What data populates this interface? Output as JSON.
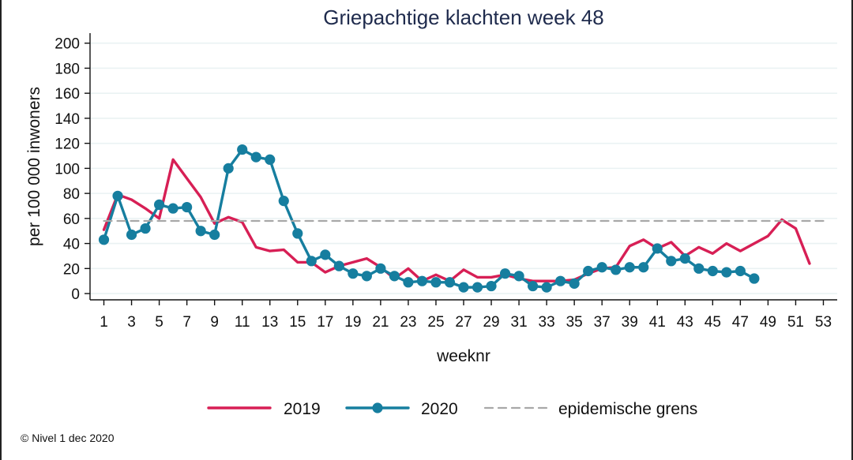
{
  "chart_data": {
    "type": "line",
    "title": "Griepachtige klachten week 48",
    "xlabel": "weeknr",
    "ylabel": "per 100 000 inwoners",
    "xlim": [
      0,
      54
    ],
    "ylim": [
      -5,
      208
    ],
    "x_ticks": [
      1,
      3,
      5,
      7,
      9,
      11,
      13,
      15,
      17,
      19,
      21,
      23,
      25,
      27,
      29,
      31,
      33,
      35,
      37,
      39,
      41,
      43,
      45,
      47,
      49,
      51,
      53
    ],
    "y_ticks": [
      0,
      20,
      40,
      60,
      80,
      100,
      120,
      140,
      160,
      180,
      200
    ],
    "grid": true,
    "legend_position": "bottom",
    "series": [
      {
        "name": "2019",
        "color": "#d71f55",
        "marker": "none",
        "points": [
          [
            1,
            51
          ],
          [
            2,
            79
          ],
          [
            3,
            75
          ],
          [
            4,
            68
          ],
          [
            5,
            60
          ],
          [
            6,
            107
          ],
          [
            7,
            92
          ],
          [
            8,
            77
          ],
          [
            9,
            56
          ],
          [
            10,
            61
          ],
          [
            11,
            57
          ],
          [
            12,
            37
          ],
          [
            13,
            34
          ],
          [
            14,
            35
          ],
          [
            15,
            25
          ],
          [
            16,
            25
          ],
          [
            17,
            17
          ],
          [
            18,
            22
          ],
          [
            19,
            25
          ],
          [
            20,
            28
          ],
          [
            21,
            21
          ],
          [
            22,
            12
          ],
          [
            23,
            20
          ],
          [
            24,
            10
          ],
          [
            25,
            15
          ],
          [
            26,
            10
          ],
          [
            27,
            19
          ],
          [
            28,
            13
          ],
          [
            29,
            13
          ],
          [
            30,
            15
          ],
          [
            31,
            12
          ],
          [
            32,
            10
          ],
          [
            33,
            10
          ],
          [
            34,
            10
          ],
          [
            35,
            11
          ],
          [
            36,
            16
          ],
          [
            37,
            20
          ],
          [
            38,
            21
          ],
          [
            39,
            38
          ],
          [
            40,
            43
          ],
          [
            41,
            36
          ],
          [
            42,
            41
          ],
          [
            43,
            30
          ],
          [
            44,
            37
          ],
          [
            45,
            32
          ],
          [
            46,
            40
          ],
          [
            47,
            34
          ],
          [
            48,
            40
          ],
          [
            49,
            46
          ],
          [
            50,
            59
          ],
          [
            51,
            52
          ],
          [
            52,
            24
          ]
        ]
      },
      {
        "name": "2020",
        "color": "#167e9f",
        "marker": "circle",
        "points": [
          [
            1,
            43
          ],
          [
            2,
            78
          ],
          [
            3,
            47
          ],
          [
            4,
            52
          ],
          [
            5,
            71
          ],
          [
            6,
            68
          ],
          [
            7,
            69
          ],
          [
            8,
            50
          ],
          [
            9,
            47
          ],
          [
            10,
            100
          ],
          [
            11,
            115
          ],
          [
            12,
            109
          ],
          [
            13,
            107
          ],
          [
            14,
            74
          ],
          [
            15,
            48
          ],
          [
            16,
            26
          ],
          [
            17,
            31
          ],
          [
            18,
            22
          ],
          [
            19,
            16
          ],
          [
            20,
            14
          ],
          [
            21,
            20
          ],
          [
            22,
            14
          ],
          [
            23,
            9
          ],
          [
            24,
            10
          ],
          [
            25,
            9
          ],
          [
            26,
            9
          ],
          [
            27,
            5
          ],
          [
            28,
            5
          ],
          [
            29,
            6
          ],
          [
            30,
            16
          ],
          [
            31,
            14
          ],
          [
            32,
            6
          ],
          [
            33,
            5
          ],
          [
            34,
            10
          ],
          [
            35,
            8
          ],
          [
            36,
            18
          ],
          [
            37,
            21
          ],
          [
            38,
            19
          ],
          [
            39,
            21
          ],
          [
            40,
            21
          ],
          [
            41,
            36
          ],
          [
            42,
            26
          ],
          [
            43,
            28
          ],
          [
            44,
            20
          ],
          [
            45,
            18
          ],
          [
            46,
            17
          ],
          [
            47,
            18
          ],
          [
            48,
            12
          ]
        ]
      },
      {
        "name": "epidemische grens",
        "color": "#a8a8a8",
        "marker": "none",
        "dash": true,
        "points": [
          [
            1,
            58
          ],
          [
            53,
            58
          ]
        ]
      }
    ]
  },
  "footer": {
    "source": "© Nivel 1 dec 2020"
  }
}
